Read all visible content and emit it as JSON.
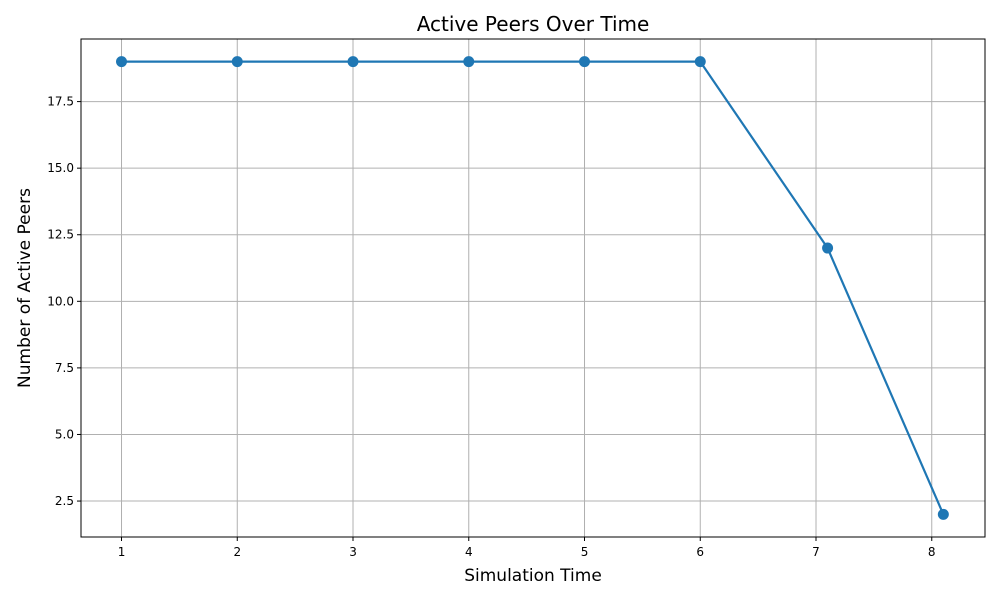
{
  "chart_data": {
    "type": "line",
    "title": "Active Peers Over Time",
    "xlabel": "Simulation Time",
    "ylabel": "Number of Active Peers",
    "x": [
      1,
      2,
      3,
      4,
      5,
      6,
      7.1,
      8.1
    ],
    "series": [
      {
        "values": [
          19,
          19,
          19,
          19,
          19,
          19,
          12,
          2
        ],
        "color": "#1f77b4"
      }
    ],
    "xlim": [
      0.65,
      8.46
    ],
    "ylim": [
      1.15,
      19.85
    ],
    "xticks": [
      1,
      2,
      3,
      4,
      5,
      6,
      7,
      8
    ],
    "xtick_labels": [
      "1",
      "2",
      "3",
      "4",
      "5",
      "6",
      "7",
      "8"
    ],
    "yticks": [
      2.5,
      5.0,
      7.5,
      10.0,
      12.5,
      15.0,
      17.5
    ],
    "ytick_labels": [
      "2.5",
      "5.0",
      "7.5",
      "10.0",
      "12.5",
      "15.0",
      "17.5"
    ],
    "grid": true,
    "marker": "circle"
  }
}
